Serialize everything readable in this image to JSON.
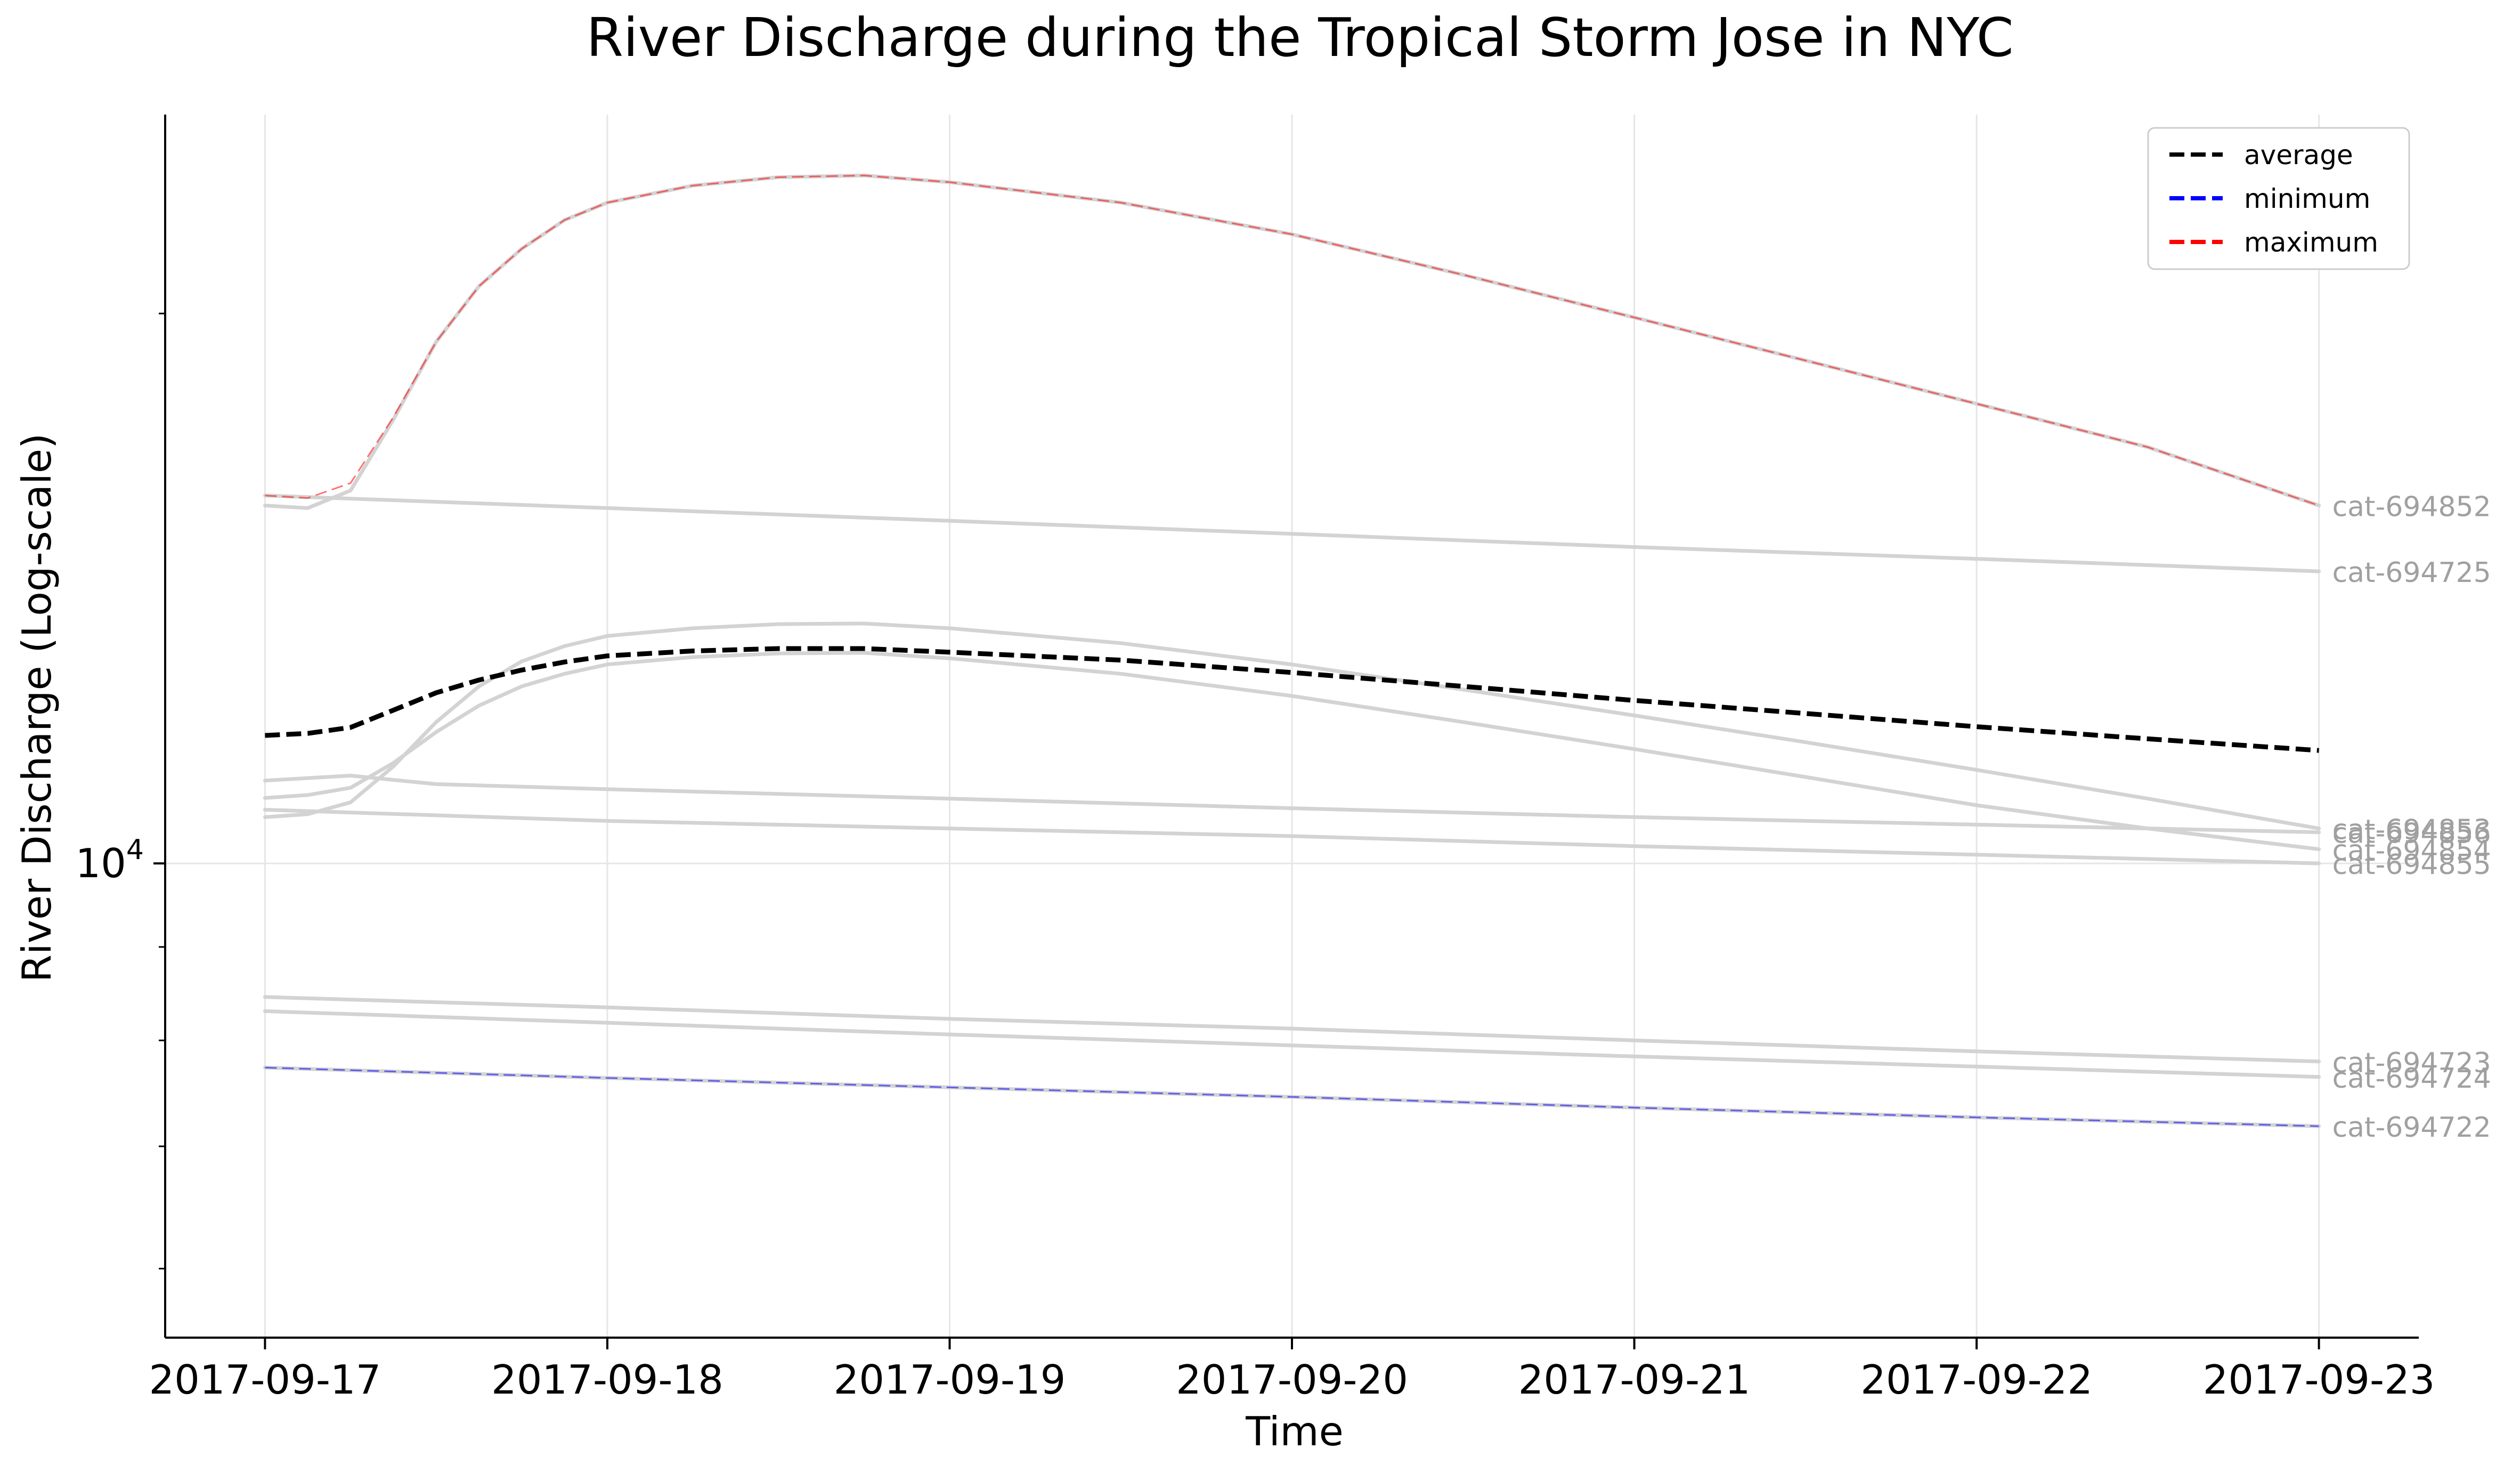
{
  "chart_data": {
    "type": "line",
    "title": "River Discharge during the Tropical Storm Jose in NYC",
    "xlabel": "Time",
    "ylabel": "River Discharge (Log-scale)",
    "x_ticks": [
      "2017-09-17",
      "2017-09-18",
      "2017-09-19",
      "2017-09-20",
      "2017-09-21",
      "2017-09-22",
      "2017-09-23"
    ],
    "xlim": [
      "2017-09-16T17:00",
      "2017-09-23T07:00"
    ],
    "yscale": "log",
    "ylim": [
      5500,
      25700
    ],
    "y_ticks": [
      10000
    ],
    "y_tick_labels": [
      "10^4"
    ],
    "grid": true,
    "legend_position": "top-right",
    "legend": [
      {
        "label": "average",
        "color": "#000000"
      },
      {
        "label": "minimum",
        "color": "#0000ff"
      },
      {
        "label": "maximum",
        "color": "#ff0000"
      }
    ],
    "colors": {
      "background_series": "#d3d3d3",
      "series_label": "#a0a0a0"
    },
    "background_series": [
      {
        "name": "cat-694852",
        "x": [
          "2017-09-17T00:00",
          "2017-09-17T03:00",
          "2017-09-17T06:00",
          "2017-09-17T09:00",
          "2017-09-17T12:00",
          "2017-09-17T15:00",
          "2017-09-17T18:00",
          "2017-09-17T21:00",
          "2017-09-18T00:00",
          "2017-09-18T06:00",
          "2017-09-18T12:00",
          "2017-09-18T18:00",
          "2017-09-19T00:00",
          "2017-09-19T12:00",
          "2017-09-20T00:00",
          "2017-09-20T12:00",
          "2017-09-21T00:00",
          "2017-09-21T12:00",
          "2017-09-22T00:00",
          "2017-09-22T12:00",
          "2017-09-23T00:00"
        ],
        "y": [
          15700,
          15650,
          16000,
          17500,
          19300,
          20700,
          21700,
          22500,
          23000,
          23500,
          23750,
          23800,
          23600,
          23000,
          22100,
          21000,
          19900,
          18850,
          17850,
          16900,
          15700
        ]
      },
      {
        "name": "cat-694725",
        "x": [
          "2017-09-17T00:00",
          "2017-09-18T00:00",
          "2017-09-19T00:00",
          "2017-09-20T00:00",
          "2017-09-21T00:00",
          "2017-09-22T00:00",
          "2017-09-23T00:00"
        ],
        "y": [
          15900,
          15650,
          15400,
          15150,
          14900,
          14680,
          14450
        ]
      },
      {
        "name": "cat-694853",
        "x": [
          "2017-09-17T00:00",
          "2017-09-17T03:00",
          "2017-09-17T06:00",
          "2017-09-17T09:00",
          "2017-09-17T12:00",
          "2017-09-17T15:00",
          "2017-09-17T18:00",
          "2017-09-17T21:00",
          "2017-09-18T00:00",
          "2017-09-18T06:00",
          "2017-09-18T12:00",
          "2017-09-18T18:00",
          "2017-09-19T00:00",
          "2017-09-19T12:00",
          "2017-09-20T00:00",
          "2017-09-20T12:00",
          "2017-09-21T00:00",
          "2017-09-21T12:00",
          "2017-09-22T00:00",
          "2017-09-22T12:00",
          "2017-09-23T00:00"
        ],
        "y": [
          10600,
          10640,
          10800,
          11300,
          11950,
          12500,
          12900,
          13150,
          13320,
          13450,
          13520,
          13530,
          13450,
          13200,
          12850,
          12450,
          12050,
          11650,
          11250,
          10850,
          10450
        ]
      },
      {
        "name": "cat-694854",
        "x": [
          "2017-09-17T00:00",
          "2017-09-17T03:00",
          "2017-09-17T06:00",
          "2017-09-17T09:00",
          "2017-09-17T12:00",
          "2017-09-17T15:00",
          "2017-09-17T18:00",
          "2017-09-17T21:00",
          "2017-09-18T00:00",
          "2017-09-18T06:00",
          "2017-09-18T12:00",
          "2017-09-18T18:00",
          "2017-09-19T00:00",
          "2017-09-19T12:00",
          "2017-09-20T00:00",
          "2017-09-20T12:00",
          "2017-09-21T00:00",
          "2017-09-21T12:00",
          "2017-09-22T00:00",
          "2017-09-22T12:00",
          "2017-09-23T00:00"
        ],
        "y": [
          10860,
          10900,
          11000,
          11350,
          11800,
          12200,
          12500,
          12700,
          12850,
          12970,
          13030,
          13040,
          12950,
          12700,
          12350,
          11950,
          11550,
          11150,
          10760,
          10450,
          10180
        ]
      },
      {
        "name": "cat-694856",
        "x": [
          "2017-09-17T00:00",
          "2017-09-17T06:00",
          "2017-09-17T12:00",
          "2017-09-18T00:00",
          "2017-09-19T00:00",
          "2017-09-20T00:00",
          "2017-09-21T00:00",
          "2017-09-22T00:00",
          "2017-09-23T00:00"
        ],
        "y": [
          11100,
          11170,
          11050,
          10980,
          10850,
          10720,
          10600,
          10500,
          10400
        ]
      },
      {
        "name": "cat-694855",
        "x": [
          "2017-09-17T00:00",
          "2017-09-18T00:00",
          "2017-09-19T00:00",
          "2017-09-20T00:00",
          "2017-09-21T00:00",
          "2017-09-22T00:00",
          "2017-09-23T00:00"
        ],
        "y": [
          10700,
          10550,
          10450,
          10350,
          10220,
          10110,
          10000
        ]
      },
      {
        "name": "cat-694723",
        "x": [
          "2017-09-17T00:00",
          "2017-09-18T00:00",
          "2017-09-19T00:00",
          "2017-09-20T00:00",
          "2017-09-21T00:00",
          "2017-09-22T00:00",
          "2017-09-23T00:00"
        ],
        "y": [
          8450,
          8340,
          8220,
          8120,
          8000,
          7890,
          7790
        ]
      },
      {
        "name": "cat-694724",
        "x": [
          "2017-09-17T00:00",
          "2017-09-18T00:00",
          "2017-09-19T00:00",
          "2017-09-20T00:00",
          "2017-09-21T00:00",
          "2017-09-22T00:00",
          "2017-09-23T00:00"
        ],
        "y": [
          8300,
          8180,
          8060,
          7950,
          7840,
          7740,
          7640
        ]
      },
      {
        "name": "cat-694722",
        "x": [
          "2017-09-17T00:00",
          "2017-09-18T00:00",
          "2017-09-19T00:00",
          "2017-09-20T00:00",
          "2017-09-21T00:00",
          "2017-09-22T00:00",
          "2017-09-23T00:00"
        ],
        "y": [
          7730,
          7630,
          7540,
          7450,
          7350,
          7260,
          7180
        ]
      }
    ],
    "series": [
      {
        "name": "average",
        "color": "#000000",
        "x": [
          "2017-09-17T00:00",
          "2017-09-17T03:00",
          "2017-09-17T06:00",
          "2017-09-17T09:00",
          "2017-09-17T12:00",
          "2017-09-17T15:00",
          "2017-09-17T18:00",
          "2017-09-17T21:00",
          "2017-09-18T00:00",
          "2017-09-18T06:00",
          "2017-09-18T12:00",
          "2017-09-18T18:00",
          "2017-09-19T00:00",
          "2017-09-19T12:00",
          "2017-09-20T00:00",
          "2017-09-20T12:00",
          "2017-09-21T00:00",
          "2017-09-21T12:00",
          "2017-09-22T00:00",
          "2017-09-22T12:00",
          "2017-09-23T00:00"
        ],
        "y": [
          11750,
          11780,
          11870,
          12130,
          12400,
          12600,
          12760,
          12890,
          12990,
          13070,
          13110,
          13110,
          13050,
          12920,
          12720,
          12500,
          12280,
          12080,
          11880,
          11700,
          11530
        ]
      },
      {
        "name": "minimum",
        "color": "#0000ff",
        "x": [
          "2017-09-17T00:00",
          "2017-09-18T00:00",
          "2017-09-19T00:00",
          "2017-09-20T00:00",
          "2017-09-21T00:00",
          "2017-09-22T00:00",
          "2017-09-23T00:00"
        ],
        "y": [
          7730,
          7630,
          7540,
          7450,
          7350,
          7260,
          7180
        ]
      },
      {
        "name": "maximum",
        "color": "#ff0000",
        "x": [
          "2017-09-17T00:00",
          "2017-09-17T03:00",
          "2017-09-17T06:00",
          "2017-09-17T09:00",
          "2017-09-17T12:00",
          "2017-09-17T15:00",
          "2017-09-17T18:00",
          "2017-09-17T21:00",
          "2017-09-18T00:00",
          "2017-09-18T06:00",
          "2017-09-18T12:00",
          "2017-09-18T18:00",
          "2017-09-19T00:00",
          "2017-09-19T12:00",
          "2017-09-20T00:00",
          "2017-09-20T12:00",
          "2017-09-21T00:00",
          "2017-09-21T12:00",
          "2017-09-22T00:00",
          "2017-09-22T12:00",
          "2017-09-23T00:00"
        ],
        "y": [
          15900,
          15850,
          16150,
          17550,
          19300,
          20700,
          21700,
          22500,
          23000,
          23500,
          23750,
          23800,
          23600,
          23000,
          22100,
          21000,
          19900,
          18850,
          17850,
          16900,
          15700
        ]
      }
    ]
  }
}
